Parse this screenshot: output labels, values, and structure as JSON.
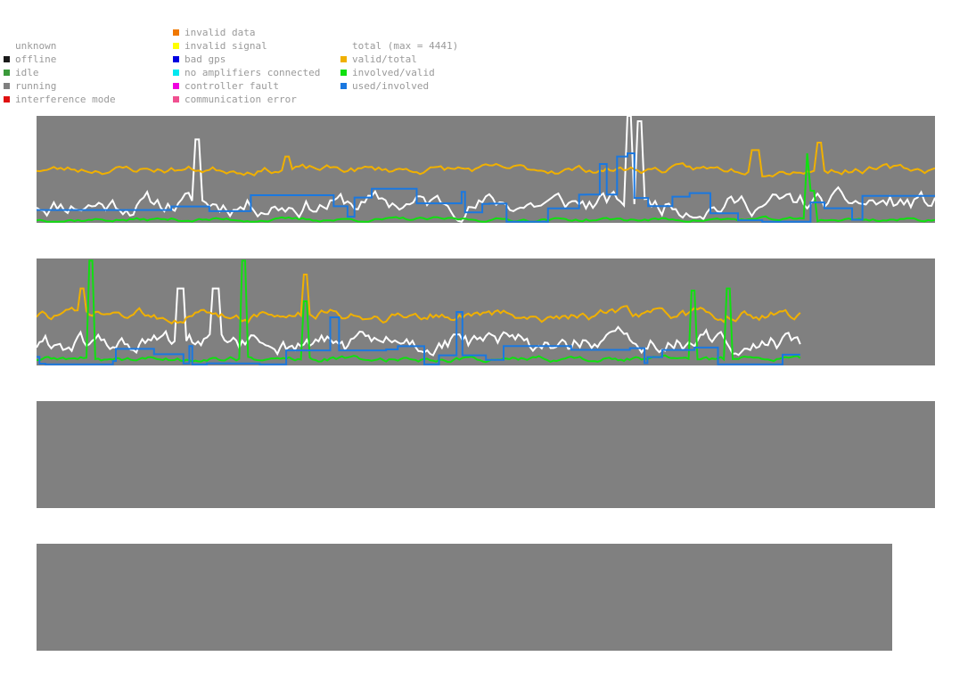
{
  "legend": {
    "status": [
      {
        "label": "unknown",
        "color": ""
      },
      {
        "label": "offline",
        "color": "#1a1a1a"
      },
      {
        "label": "idle",
        "color": "#3a9a3a"
      },
      {
        "label": "running",
        "color": "#808080"
      },
      {
        "label": "interference mode",
        "color": "#e01010"
      }
    ],
    "errors": [
      {
        "label": "invalid data",
        "color": "#f07800"
      },
      {
        "label": "invalid signal",
        "color": "#ffff00"
      },
      {
        "label": "bad gps",
        "color": "#0000e0"
      },
      {
        "label": "no amplifiers connected",
        "color": "#00e8f0"
      },
      {
        "label": "controller fault",
        "color": "#f000e0"
      },
      {
        "label": "communication error",
        "color": "#f05090"
      }
    ],
    "series": [
      {
        "label": "total (max = 4441)",
        "color": ""
      },
      {
        "label": "valid/total",
        "color": "#f0b000"
      },
      {
        "label": "involved/valid",
        "color": "#10e010"
      },
      {
        "label": "used/involved",
        "color": "#1a78e0"
      }
    ]
  },
  "chart_data": [
    {
      "type": "line",
      "title": "",
      "ylim": [
        0,
        1
      ],
      "x_range": [
        0,
        1
      ],
      "series": [
        {
          "name": "total",
          "color": "#ffffff",
          "seed": 11,
          "base": 0.18,
          "amp": 0.16,
          "spikes": [
            [
              0.18,
              0.78
            ],
            [
              0.66,
              1.0
            ],
            [
              0.67,
              0.95
            ]
          ]
        },
        {
          "name": "valid/total",
          "color": "#f0b000",
          "seed": 23,
          "base": 0.5,
          "amp": 0.06,
          "spikes": [
            [
              0.28,
              0.62
            ],
            [
              0.8,
              0.68
            ],
            [
              0.87,
              0.75
            ]
          ]
        },
        {
          "name": "involved/valid",
          "color": "#10e010",
          "seed": 37,
          "base": 0.03,
          "amp": 0.03,
          "spikes": [
            [
              0.86,
              0.65
            ],
            [
              0.865,
              0.3
            ]
          ]
        },
        {
          "name": "used/involved",
          "color": "#1a78e0",
          "seed": 51,
          "base": 0.12,
          "amp": 0.1,
          "steps": true,
          "spikes": [
            [
              0.63,
              0.55
            ],
            [
              0.65,
              0.62
            ],
            [
              0.66,
              0.65
            ]
          ]
        }
      ]
    },
    {
      "type": "line",
      "title": "",
      "ylim": [
        0,
        1
      ],
      "x_range": [
        0,
        0.85
      ],
      "series": [
        {
          "name": "total",
          "color": "#ffffff",
          "seed": 61,
          "base": 0.2,
          "amp": 0.15,
          "spikes": [
            [
              0.16,
              0.72
            ],
            [
              0.2,
              0.72
            ]
          ]
        },
        {
          "name": "valid/total",
          "color": "#f0b000",
          "seed": 73,
          "base": 0.47,
          "amp": 0.08,
          "spikes": [
            [
              0.05,
              0.72
            ],
            [
              0.3,
              0.85
            ]
          ]
        },
        {
          "name": "involved/valid",
          "color": "#10e010",
          "seed": 89,
          "base": 0.06,
          "amp": 0.04,
          "spikes": [
            [
              0.06,
              0.98
            ],
            [
              0.23,
              0.98
            ],
            [
              0.3,
              0.6
            ],
            [
              0.73,
              0.7
            ],
            [
              0.77,
              0.72
            ]
          ]
        },
        {
          "name": "used/involved",
          "color": "#1a78e0",
          "seed": 97,
          "base": 0.08,
          "amp": 0.06,
          "steps": true,
          "spikes": [
            [
              0.33,
              0.45
            ],
            [
              0.47,
              0.5
            ]
          ]
        }
      ]
    },
    {
      "type": "line",
      "title": "",
      "ylim": [
        0,
        1
      ],
      "series": []
    },
    {
      "type": "line",
      "title": "",
      "ylim": [
        0,
        1
      ],
      "series": []
    }
  ]
}
